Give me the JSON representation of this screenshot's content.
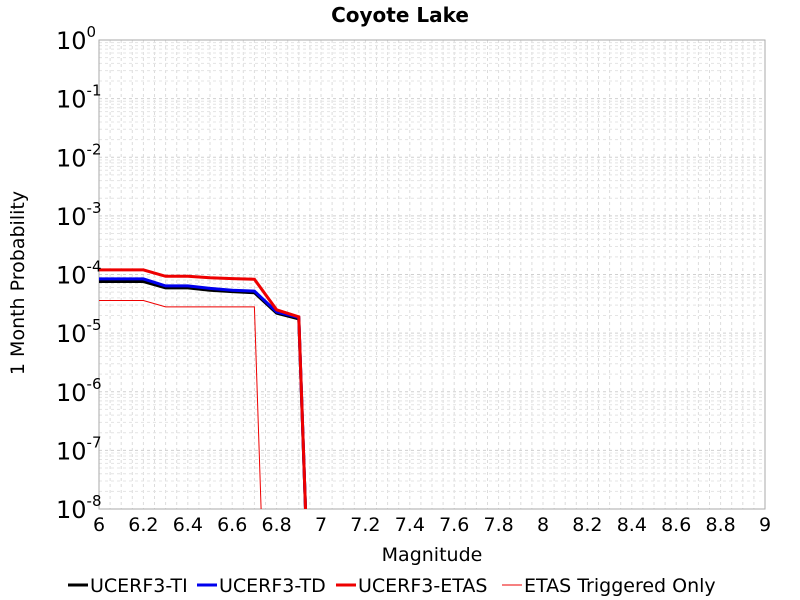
{
  "chart_data": {
    "type": "line",
    "title": "Coyote Lake",
    "xlabel": "Magnitude",
    "ylabel": "1 Month Probability",
    "xlim": [
      6,
      9
    ],
    "ylim": [
      1e-08,
      1
    ],
    "yscale": "log",
    "grid": true,
    "legend_position": "bottom",
    "x_ticks": [
      "6",
      "6.2",
      "6.4",
      "6.6",
      "6.8",
      "7",
      "7.2",
      "7.4",
      "7.6",
      "7.8",
      "8",
      "8.2",
      "8.4",
      "8.6",
      "8.8",
      "9"
    ],
    "y_ticks": [
      {
        "base": "10",
        "exp": "0"
      },
      {
        "base": "10",
        "exp": "-1"
      },
      {
        "base": "10",
        "exp": "-2"
      },
      {
        "base": "10",
        "exp": "-3"
      },
      {
        "base": "10",
        "exp": "-4"
      },
      {
        "base": "10",
        "exp": "-5"
      },
      {
        "base": "10",
        "exp": "-6"
      },
      {
        "base": "10",
        "exp": "-7"
      },
      {
        "base": "10",
        "exp": "-8"
      }
    ],
    "series": [
      {
        "name": "UCERF3-TI",
        "color": "#000000",
        "width": 3,
        "x": [
          6.0,
          6.1,
          6.2,
          6.3,
          6.4,
          6.5,
          6.6,
          6.7,
          6.8,
          6.9,
          6.93
        ],
        "y": [
          7.6e-05,
          7.6e-05,
          7.6e-05,
          5.9e-05,
          5.9e-05,
          5.4e-05,
          5.1e-05,
          4.9e-05,
          2.2e-05,
          1.75e-05,
          1e-08
        ]
      },
      {
        "name": "UCERF3-TD",
        "color": "#0000ee",
        "width": 3,
        "x": [
          6.0,
          6.1,
          6.2,
          6.3,
          6.4,
          6.5,
          6.6,
          6.7,
          6.8,
          6.9,
          6.93
        ],
        "y": [
          8.4e-05,
          8.4e-05,
          8.4e-05,
          6.4e-05,
          6.4e-05,
          5.8e-05,
          5.4e-05,
          5.2e-05,
          2.3e-05,
          1.85e-05,
          1e-08
        ]
      },
      {
        "name": "UCERF3-ETAS",
        "color": "#ee0000",
        "width": 3,
        "x": [
          6.0,
          6.1,
          6.2,
          6.3,
          6.4,
          6.5,
          6.6,
          6.7,
          6.8,
          6.9,
          6.93
        ],
        "y": [
          0.00012,
          0.00012,
          0.00012,
          9.3e-05,
          9.3e-05,
          8.8e-05,
          8.5e-05,
          8.3e-05,
          2.5e-05,
          1.9e-05,
          1e-08
        ]
      },
      {
        "name": "ETAS Triggered Only",
        "color": "#ee0000",
        "width": 1,
        "x": [
          6.0,
          6.1,
          6.2,
          6.3,
          6.4,
          6.5,
          6.6,
          6.7,
          6.73
        ],
        "y": [
          3.6e-05,
          3.6e-05,
          3.6e-05,
          2.8e-05,
          2.8e-05,
          2.8e-05,
          2.8e-05,
          2.8e-05,
          1e-08
        ]
      }
    ]
  }
}
